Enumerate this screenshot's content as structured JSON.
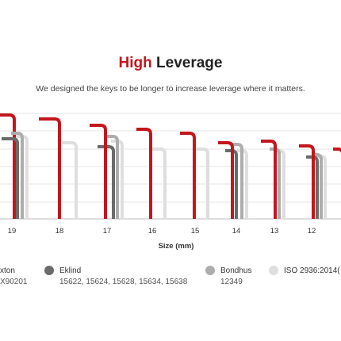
{
  "header": {
    "title_highlight": "High",
    "title_rest": "Leverage",
    "subtitle": "We designed the keys to be longer to increase leverage where it matters."
  },
  "sizes": [
    "19",
    "18",
    "17",
    "16",
    "15",
    "14",
    "13",
    "12"
  ],
  "axis_label": "Size (mm)",
  "legend": [
    {
      "name": "xton",
      "models": "X90201"
    },
    {
      "name": "Eklind",
      "models": "15622, 15624, 15628, 15634, 15638"
    },
    {
      "name": "Bondhus",
      "models": "12349"
    },
    {
      "name": "ISO 2936:2014(",
      "models": ""
    }
  ]
}
